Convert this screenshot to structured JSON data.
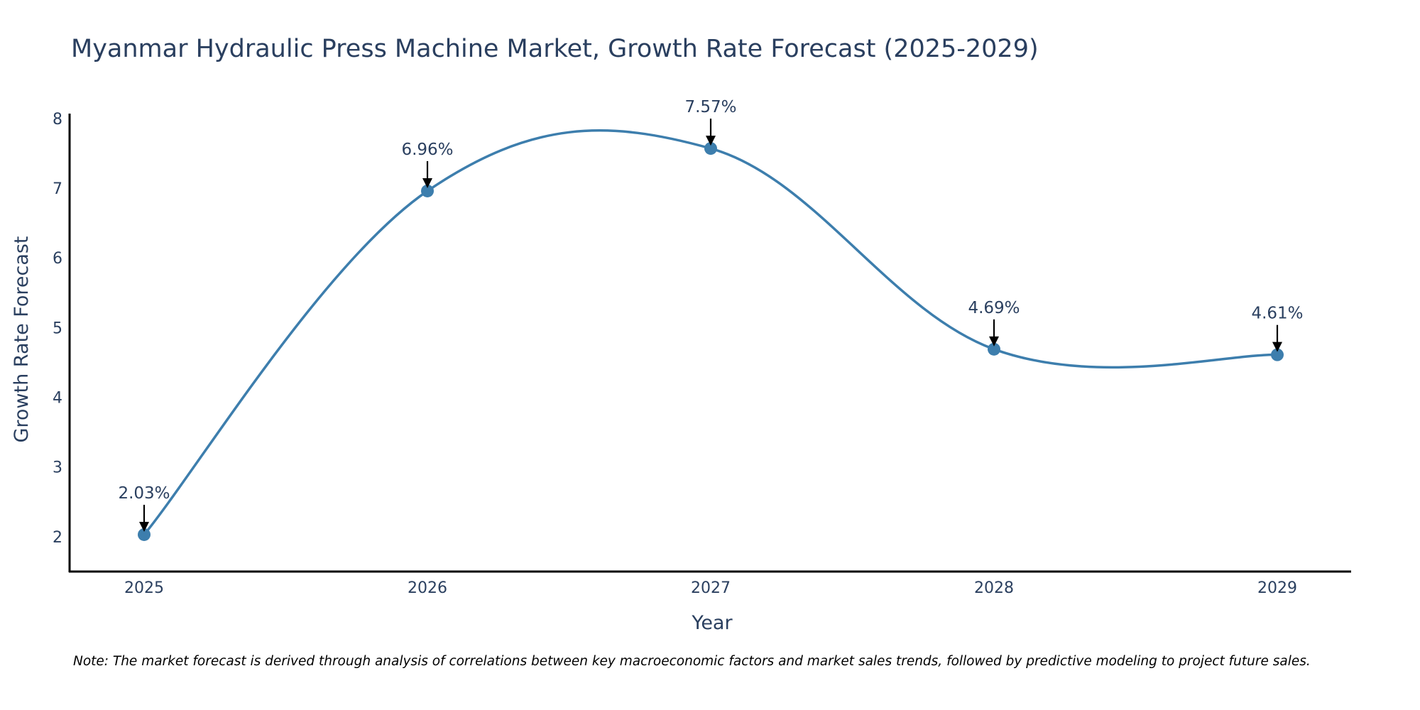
{
  "colors": {
    "line": "#3d7ead",
    "text": "#2a3f5f",
    "axis": "#000000",
    "arrow": "#000000"
  },
  "chart_data": {
    "type": "line",
    "title": "Myanmar Hydraulic Press Machine Market, Growth Rate Forecast (2025-2029)",
    "xlabel": "Year",
    "ylabel": "Growth Rate Forecast",
    "categories": [
      "2025",
      "2026",
      "2027",
      "2028",
      "2029"
    ],
    "series": [
      {
        "name": "Growth Rate Forecast",
        "values": [
          2.03,
          6.96,
          7.57,
          4.69,
          4.61
        ]
      }
    ],
    "data_labels": [
      "2.03%",
      "6.96%",
      "7.57%",
      "4.69%",
      "4.61%"
    ],
    "y_ticks": [
      "2",
      "3",
      "4",
      "5",
      "6",
      "7",
      "8"
    ],
    "ylim": [
      1.5,
      8.07
    ],
    "grid": false,
    "line_shape": "spline"
  },
  "note": "Note: The market forecast is derived through analysis of correlations between key macroeconomic factors and market sales trends, followed by predictive modeling to project future sales."
}
